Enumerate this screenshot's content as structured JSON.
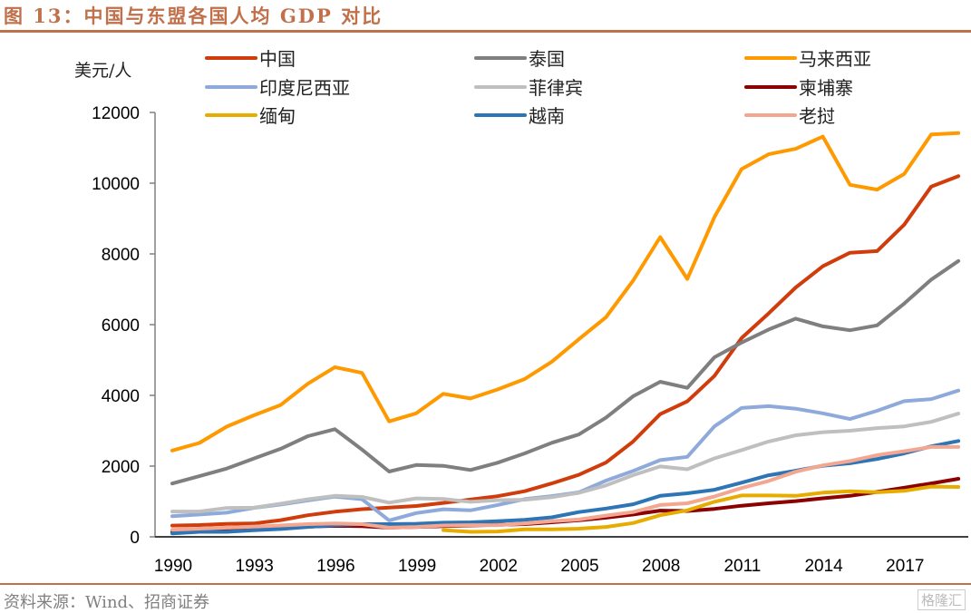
{
  "header": {
    "title": "图 13：中国与东盟各国人均 GDP 对比"
  },
  "footer": {
    "source": "资料来源：Wind、招商证券",
    "watermark": "格隆汇"
  },
  "chart_data": {
    "type": "line",
    "title": "图 13：中国与东盟各国人均 GDP 对比",
    "xlabel": "",
    "ylabel": "美元/人",
    "ylim": [
      0,
      12000
    ],
    "yticks": [
      0,
      2000,
      4000,
      6000,
      8000,
      10000,
      12000
    ],
    "xticks": [
      "1990",
      "1993",
      "1996",
      "1999",
      "2002",
      "2005",
      "2008",
      "2011",
      "2014",
      "2017"
    ],
    "grid": false,
    "legend_position": "top",
    "x": [
      1990,
      1991,
      1992,
      1993,
      1994,
      1995,
      1996,
      1997,
      1998,
      1999,
      2000,
      2001,
      2002,
      2003,
      2004,
      2005,
      2006,
      2007,
      2008,
      2009,
      2010,
      2011,
      2012,
      2013,
      2014,
      2015,
      2016,
      2017,
      2018,
      2019
    ],
    "series": [
      {
        "name": "中国",
        "color": "#d03c0c",
        "values": [
          318,
          333,
          366,
          377,
          473,
          610,
          709,
          782,
          829,
          873,
          959,
          1053,
          1149,
          1289,
          1509,
          1753,
          2099,
          2694,
          3468,
          3832,
          4550,
          5618,
          6317,
          7051,
          7651,
          8033,
          8079,
          8826,
          9905,
          10200
        ]
      },
      {
        "name": "泰国",
        "color": "#7f7f7f",
        "values": [
          1508,
          1716,
          1927,
          2209,
          2491,
          2846,
          3044,
          2467,
          1846,
          2032,
          2008,
          1891,
          2096,
          2359,
          2660,
          2894,
          3369,
          3974,
          4385,
          4213,
          5076,
          5492,
          5861,
          6168,
          5952,
          5840,
          5979,
          6595,
          7274,
          7800
        ]
      },
      {
        "name": "马来西亚",
        "color": "#ff9900",
        "values": [
          2442,
          2653,
          3114,
          3434,
          3728,
          4329,
          4798,
          4637,
          3263,
          3493,
          4044,
          3914,
          4166,
          4461,
          4952,
          5587,
          6209,
          7243,
          8475,
          7292,
          9041,
          10398,
          10818,
          10973,
          11319,
          9955,
          9818,
          10259,
          11379,
          11415
        ]
      },
      {
        "name": "印度尼西亚",
        "color": "#8eaadb",
        "values": [
          585,
          632,
          682,
          818,
          912,
          1027,
          1137,
          1064,
          464,
          671,
          780,
          748,
          901,
          1066,
          1150,
          1260,
          1590,
          1861,
          2168,
          2262,
          3122,
          3643,
          3694,
          3624,
          3492,
          3332,
          3563,
          3837,
          3894,
          4136
        ]
      },
      {
        "name": "菲律宾",
        "color": "#bfbfbf",
        "values": [
          715,
          715,
          816,
          823,
          936,
          1061,
          1160,
          1128,
          967,
          1087,
          1073,
          990,
          1035,
          1049,
          1121,
          1244,
          1453,
          1744,
          1991,
          1910,
          2217,
          2450,
          2695,
          2871,
          2960,
          3001,
          3074,
          3123,
          3252,
          3485
        ]
      },
      {
        "name": "柬埔寨",
        "color": "#8b0000",
        "values": [
          150,
          160,
          190,
          210,
          250,
          290,
          310,
          300,
          260,
          280,
          300,
          320,
          340,
          360,
          410,
          470,
          540,
          630,
          740,
          730,
          790,
          880,
          950,
          1010,
          1090,
          1160,
          1270,
          1390,
          1510,
          1640
        ]
      },
      {
        "name": "缅甸",
        "color": "#e6ac00",
        "values": [
          null,
          null,
          null,
          null,
          null,
          null,
          null,
          null,
          null,
          null,
          190,
          140,
          150,
          210,
          210,
          230,
          280,
          390,
          610,
          750,
          990,
          1170,
          1170,
          1160,
          1250,
          1290,
          1260,
          1300,
          1420,
          1410
        ]
      },
      {
        "name": "越南",
        "color": "#2e75b6",
        "values": [
          95,
          140,
          140,
          185,
          220,
          280,
          330,
          360,
          360,
          370,
          400,
          410,
          440,
          480,
          550,
          700,
          800,
          920,
          1160,
          1230,
          1330,
          1530,
          1740,
          1870,
          2010,
          2080,
          2200,
          2360,
          2560,
          2710
        ]
      },
      {
        "name": "老挝",
        "color": "#f4a790",
        "values": [
          200,
          230,
          260,
          290,
          320,
          360,
          380,
          360,
          260,
          280,
          320,
          330,
          330,
          380,
          440,
          490,
          600,
          700,
          900,
          950,
          1140,
          1380,
          1580,
          1840,
          2020,
          2140,
          2310,
          2420,
          2540,
          2540
        ]
      }
    ]
  }
}
